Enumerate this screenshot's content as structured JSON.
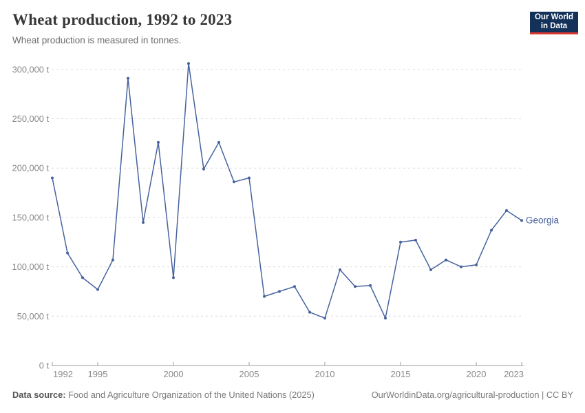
{
  "header": {
    "title": "Wheat production, 1992 to 2023",
    "subtitle": "Wheat production is measured in tonnes."
  },
  "logo": {
    "line1": "Our World",
    "line2": "in Data"
  },
  "colors": {
    "series_blue": "#46629e",
    "logo_navy": "#14315a",
    "logo_red": "#dc3832",
    "gridline": "#dcdcdc",
    "axis": "#9e9e9e",
    "tick_label": "#888888"
  },
  "chart_data": {
    "type": "line",
    "title": "Wheat production, 1992 to 2023",
    "xlabel": "",
    "ylabel": "",
    "unit": "t",
    "xlim": [
      1992,
      2023
    ],
    "ylim": [
      0,
      310000
    ],
    "x_ticks": [
      1992,
      1995,
      2000,
      2005,
      2010,
      2015,
      2020,
      2023
    ],
    "y_ticks": [
      0,
      50000,
      100000,
      150000,
      200000,
      250000,
      300000
    ],
    "grid": "horizontal-dashed",
    "legend_position": "end-of-line",
    "years": [
      1992,
      1993,
      1994,
      1995,
      1996,
      1997,
      1998,
      1999,
      2000,
      2001,
      2002,
      2003,
      2004,
      2005,
      2006,
      2007,
      2008,
      2009,
      2010,
      2011,
      2012,
      2013,
      2014,
      2015,
      2016,
      2017,
      2018,
      2019,
      2020,
      2021,
      2022,
      2023
    ],
    "series": [
      {
        "name": "Georgia",
        "color": "#46629e",
        "values": [
          190000,
          114000,
          89000,
          77000,
          107000,
          291000,
          145000,
          226000,
          89000,
          306000,
          199000,
          226000,
          186000,
          190000,
          70000,
          75000,
          80000,
          54000,
          48000,
          97000,
          80000,
          81000,
          48000,
          125000,
          127000,
          97000,
          107000,
          100000,
          102000,
          137000,
          157000,
          147000
        ]
      }
    ]
  },
  "footer": {
    "source_label": "Data source:",
    "source_text": "Food and Agriculture Organization of the United Nations (2025)",
    "link_text": "OurWorldinData.org/agricultural-production | CC BY"
  }
}
